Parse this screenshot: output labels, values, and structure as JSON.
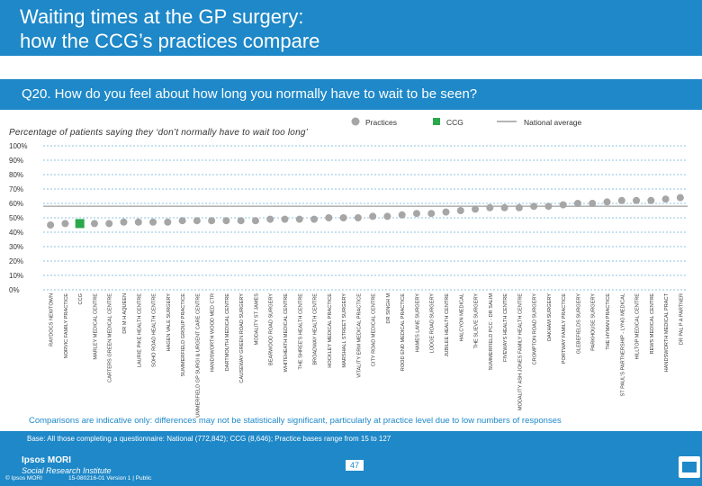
{
  "header": {
    "title_line1": "Waiting times at the GP surgery:",
    "title_line2": "how the CCG’s practices compare"
  },
  "question": "Q20. How do you feel about how long you normally have to wait to be seen?",
  "legend": {
    "practices": "Practices",
    "ccg": "CCG",
    "national": "National average"
  },
  "footnote": "Comparisons are indicative only: differences may not be statistically significant, particularly at practice level due to low numbers of responses",
  "footer": {
    "base": "Base: All those completing a questionnaire: National (772,842); CCG (8,646); Practice bases range from 15 to 127",
    "logo_line1": "Ipsos MORI",
    "logo_line2": "Social Research Institute",
    "copyright": "© Ipsos MORI",
    "reference": "15-080216-01 Version 1 | Public",
    "page_number": "47"
  },
  "colors": {
    "header_blue": "#1e88c8",
    "practice_grey": "#a6a6a6",
    "ccg_green": "#2aa84a",
    "national_line": "#b5b5b5"
  },
  "chart_data": {
    "type": "scatter",
    "title": "Percentage of patients saying they ‘don’t normally have to wait too long’",
    "ylim": [
      0,
      100
    ],
    "yticks": [
      0,
      10,
      20,
      30,
      40,
      50,
      60,
      70,
      80,
      90,
      100
    ],
    "ytick_labels": [
      "0%",
      "10%",
      "20%",
      "30%",
      "40%",
      "50%",
      "60%",
      "70%",
      "80%",
      "90%",
      "100%"
    ],
    "national_average": 58,
    "categories": [
      "RAYDOCS NEWTOWN",
      "NORVIC FAMILY PRACTICE",
      "CCG",
      "MARLEY MEDICAL CENTRE",
      "CARTERS GREEN MEDICAL CENTRE",
      "DR M H AQUEEN",
      "LAURIE PIKE HEALTH CENTRE",
      "SOHO ROAD HEALTH CENTRE",
      "HAGEN VALE SURGERY",
      "SUMMERFIELD GROUP PRACTICE",
      "SUMMERFIELD GP SURGI & URGENT CARE CENTRE",
      "HANDSWORTH WOOD MED CTR",
      "DARTMOUTH MEDICAL CENTRE",
      "CAUSEWAY GREEN ROAD SURGERY",
      "MODALITY ST JAMES",
      "BEARWOOD ROAD SURGERY",
      "WHITEHEATH MEDICAL CENTRE",
      "THE SHREE'S HEALTH CENTRE",
      "BROADWAY HEALTH CENTRE",
      "HOCKLEY MEDICAL PRACTICE",
      "MARSHALL STREET SURGERY",
      "VITALITY ERM MEDICAL PRACTICE",
      "CITY ROAD MEDICAL CENTRE",
      "DR SINGH M",
      "ROOD END MEDICAL PRACTICE",
      "HAMES LANE SURGERY",
      "LODGE ROAD SURGERY",
      "JUBILEE HEALTH CENTRE",
      "HALCYON MEDICAL",
      "THE SLIEVE SURGERY",
      "SUMMERFIELD PCC - DR SALIM",
      "FIVEWAYS HEALTH CENTRE",
      "MODALITY ASH JONES FAMILY HEALTH CENTRE",
      "CROMPTON ROAD SURGERY",
      "OAKHAM SURGERY",
      "PORTWAY FAMILY PRACTICE",
      "GLEBEFIELDS SURGERY",
      "PARKHOUSE SURGERY",
      "THE HYMAN PRACTICE",
      "ST PAUL'S PARTNERSHIP - LYNG MEDICAL",
      "HILLTOP MEDICAL CENTRE",
      "REWS MEDICAL CENTRE",
      "HANDSWORTH MEDICAL PRACT",
      "DR PAL P A PARTNER"
    ],
    "values": [
      45,
      46,
      46,
      46,
      46,
      47,
      47,
      47,
      47,
      48,
      48,
      48,
      48,
      48,
      48,
      49,
      49,
      49,
      49,
      50,
      50,
      50,
      51,
      51,
      52,
      53,
      53,
      54,
      55,
      56,
      57,
      57,
      57,
      58,
      58,
      59,
      60,
      60,
      61,
      62,
      62,
      62,
      63,
      64
    ],
    "highlight": "CCG"
  }
}
